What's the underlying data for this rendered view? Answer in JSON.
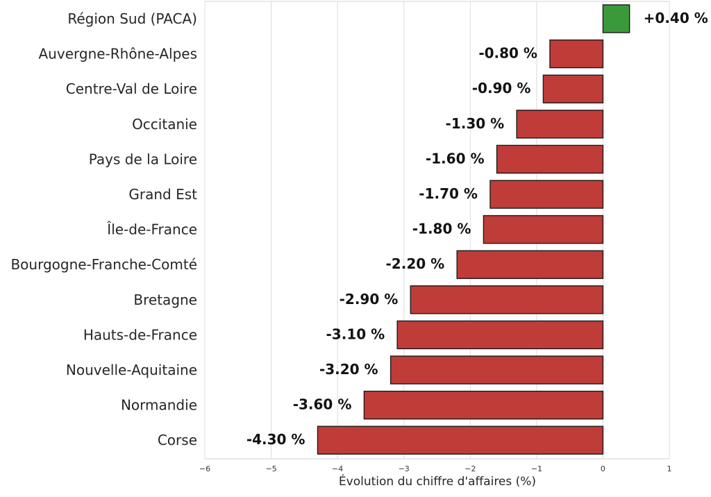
{
  "chart_data": {
    "type": "bar",
    "orientation": "horizontal",
    "categories": [
      "Région Sud (PACA)",
      "Auvergne-Rhône-Alpes",
      "Centre-Val de Loire",
      "Occitanie",
      "Pays de la Loire",
      "Grand Est",
      "Île-de-France",
      "Bourgogne-Franche-Comté",
      "Bretagne",
      "Hauts-de-France",
      "Nouvelle-Aquitaine",
      "Normandie",
      "Corse"
    ],
    "values": [
      0.4,
      -0.8,
      -0.9,
      -1.3,
      -1.6,
      -1.7,
      -1.8,
      -2.2,
      -2.9,
      -3.1,
      -3.2,
      -3.6,
      -4.3
    ],
    "value_labels": [
      "+0.40 %",
      "-0.80 %",
      "-0.90 %",
      "-1.30 %",
      "-1.60 %",
      "-1.70 %",
      "-1.80 %",
      "-2.20 %",
      "-2.90 %",
      "-3.10 %",
      "-3.20 %",
      "-3.60 %",
      "-4.30 %"
    ],
    "xlabel": "Évolution du chiffre d'affaires (%)",
    "xlim": [
      -6,
      1
    ],
    "xticks": [
      -6,
      -5,
      -4,
      -3,
      -2,
      -1,
      0,
      1
    ],
    "xtick_labels": [
      "−6",
      "−5",
      "−4",
      "−3",
      "−2",
      "−1",
      "0",
      "1"
    ],
    "grid": "vertical",
    "colors": {
      "positive": "#3a9a3a",
      "negative": "#c03c38",
      "edge": "#1a1a1a"
    }
  }
}
